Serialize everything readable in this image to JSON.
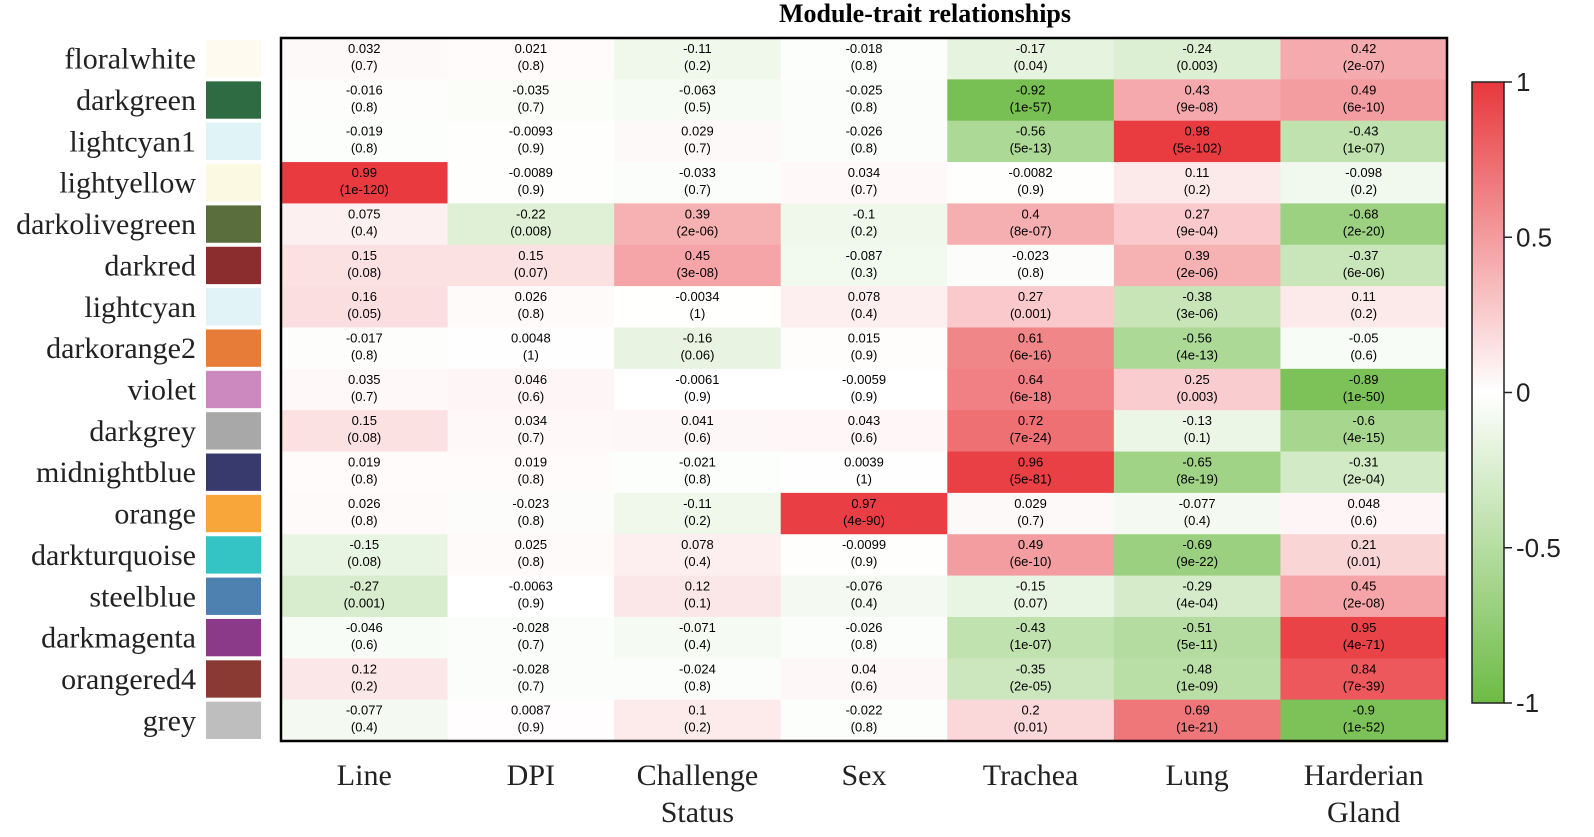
{
  "chart_data": {
    "type": "heatmap",
    "title": "Module-trait relationships",
    "columns": [
      "Line",
      "DPI",
      "Challenge Status",
      "Sex",
      "Trachea",
      "Lung",
      "Harderian Gland"
    ],
    "modules": [
      {
        "name": "floralwhite",
        "color": "#FFFAF0"
      },
      {
        "name": "darkgreen",
        "color": "#2E6B43"
      },
      {
        "name": "lightcyan1",
        "color": "#E0F4F8"
      },
      {
        "name": "lightyellow",
        "color": "#FCF9E3"
      },
      {
        "name": "darkolivegreen",
        "color": "#5A6E3D"
      },
      {
        "name": "darkred",
        "color": "#8B2C2E"
      },
      {
        "name": "lightcyan",
        "color": "#E2F3F7"
      },
      {
        "name": "darkorange2",
        "color": "#E67C38"
      },
      {
        "name": "violet",
        "color": "#CB89BF"
      },
      {
        "name": "darkgrey",
        "color": "#A8A8A8"
      },
      {
        "name": "midnightblue",
        "color": "#383A6E"
      },
      {
        "name": "orange",
        "color": "#F8A539"
      },
      {
        "name": "darkturquoise",
        "color": "#34C4C6"
      },
      {
        "name": "steelblue",
        "color": "#4F81B0"
      },
      {
        "name": "darkmagenta",
        "color": "#8A3A89"
      },
      {
        "name": "orangered4",
        "color": "#8B3A33"
      },
      {
        "name": "grey",
        "color": "#BEBEBE"
      }
    ],
    "correlations": [
      [
        "0.032",
        "0.021",
        "-0.11",
        "-0.018",
        "-0.17",
        "-0.24",
        "0.42"
      ],
      [
        "-0.016",
        "-0.035",
        "-0.063",
        "-0.025",
        "-0.92",
        "0.43",
        "0.49"
      ],
      [
        "-0.019",
        "-0.0093",
        "0.029",
        "-0.026",
        "-0.56",
        "0.98",
        "-0.43"
      ],
      [
        "0.99",
        "-0.0089",
        "-0.033",
        "0.034",
        "-0.0082",
        "0.11",
        "-0.098"
      ],
      [
        "0.075",
        "-0.22",
        "0.39",
        "-0.1",
        "0.4",
        "0.27",
        "-0.68"
      ],
      [
        "0.15",
        "0.15",
        "0.45",
        "-0.087",
        "-0.023",
        "0.39",
        "-0.37"
      ],
      [
        "0.16",
        "0.026",
        "-0.0034",
        "0.078",
        "0.27",
        "-0.38",
        "0.11"
      ],
      [
        "-0.017",
        "0.0048",
        "-0.16",
        "0.015",
        "0.61",
        "-0.56",
        "-0.05"
      ],
      [
        "0.035",
        "0.046",
        "-0.0061",
        "-0.0059",
        "0.64",
        "0.25",
        "-0.89"
      ],
      [
        "0.15",
        "0.034",
        "0.041",
        "0.043",
        "0.72",
        "-0.13",
        "-0.6"
      ],
      [
        "0.019",
        "0.019",
        "-0.021",
        "0.0039",
        "0.96",
        "-0.65",
        "-0.31"
      ],
      [
        "0.026",
        "-0.023",
        "-0.11",
        "0.97",
        "0.029",
        "-0.077",
        "0.048"
      ],
      [
        "-0.15",
        "0.025",
        "0.078",
        "-0.0099",
        "0.49",
        "-0.69",
        "0.21"
      ],
      [
        "-0.27",
        "-0.0063",
        "0.12",
        "-0.076",
        "-0.15",
        "-0.29",
        "0.45"
      ],
      [
        "-0.046",
        "-0.028",
        "-0.071",
        "-0.026",
        "-0.43",
        "-0.51",
        "0.95"
      ],
      [
        "0.12",
        "-0.028",
        "-0.024",
        "0.04",
        "-0.35",
        "-0.48",
        "0.84"
      ],
      [
        "-0.077",
        "0.0087",
        "0.1",
        "-0.022",
        "0.2",
        "0.69",
        "-0.9"
      ]
    ],
    "pvalues": [
      [
        "(0.7)",
        "(0.8)",
        "(0.2)",
        "(0.8)",
        "(0.04)",
        "(0.003)",
        "(2e-07)"
      ],
      [
        "(0.8)",
        "(0.7)",
        "(0.5)",
        "(0.8)",
        "(1e-57)",
        "(9e-08)",
        "(6e-10)"
      ],
      [
        "(0.8)",
        "(0.9)",
        "(0.7)",
        "(0.8)",
        "(5e-13)",
        "(5e-102)",
        "(1e-07)"
      ],
      [
        "(1e-120)",
        "(0.9)",
        "(0.7)",
        "(0.7)",
        "(0.9)",
        "(0.2)",
        "(0.2)"
      ],
      [
        "(0.4)",
        "(0.008)",
        "(2e-06)",
        "(0.2)",
        "(8e-07)",
        "(9e-04)",
        "(2e-20)"
      ],
      [
        "(0.08)",
        "(0.07)",
        "(3e-08)",
        "(0.3)",
        "(0.8)",
        "(2e-06)",
        "(6e-06)"
      ],
      [
        "(0.05)",
        "(0.8)",
        "(1)",
        "(0.4)",
        "(0.001)",
        "(3e-06)",
        "(0.2)"
      ],
      [
        "(0.8)",
        "(1)",
        "(0.06)",
        "(0.9)",
        "(6e-16)",
        "(4e-13)",
        "(0.6)"
      ],
      [
        "(0.7)",
        "(0.6)",
        "(0.9)",
        "(0.9)",
        "(6e-18)",
        "(0.003)",
        "(1e-50)"
      ],
      [
        "(0.08)",
        "(0.7)",
        "(0.6)",
        "(0.6)",
        "(7e-24)",
        "(0.1)",
        "(4e-15)"
      ],
      [
        "(0.8)",
        "(0.8)",
        "(0.8)",
        "(1)",
        "(5e-81)",
        "(8e-19)",
        "(2e-04)"
      ],
      [
        "(0.8)",
        "(0.8)",
        "(0.2)",
        "(4e-90)",
        "(0.7)",
        "(0.4)",
        "(0.6)"
      ],
      [
        "(0.08)",
        "(0.8)",
        "(0.4)",
        "(0.9)",
        "(6e-10)",
        "(9e-22)",
        "(0.01)"
      ],
      [
        "(0.001)",
        "(0.9)",
        "(0.1)",
        "(0.4)",
        "(0.07)",
        "(4e-04)",
        "(2e-08)"
      ],
      [
        "(0.6)",
        "(0.7)",
        "(0.4)",
        "(0.8)",
        "(1e-07)",
        "(5e-11)",
        "(4e-71)"
      ],
      [
        "(0.2)",
        "(0.7)",
        "(0.8)",
        "(0.6)",
        "(2e-05)",
        "(1e-09)",
        "(7e-39)"
      ],
      [
        "(0.4)",
        "(0.9)",
        "(0.2)",
        "(0.8)",
        "(0.01)",
        "(1e-21)",
        "(1e-52)"
      ]
    ],
    "colorscale": {
      "min": -1,
      "max": 1,
      "low_color": "#6DBB45",
      "mid_color": "#FFFFFF",
      "high_color": "#E8383D",
      "ticks": [
        "1",
        "0.5",
        "0",
        "-0.5",
        "-1"
      ],
      "tick_values": [
        1,
        0.5,
        0,
        -0.5,
        -1
      ]
    }
  }
}
